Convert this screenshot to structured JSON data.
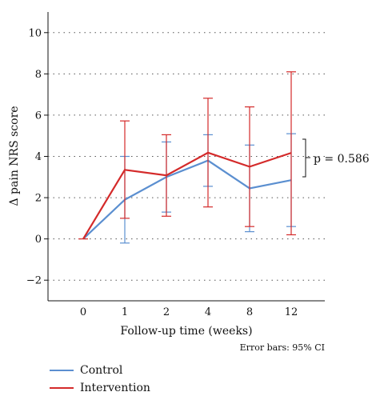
{
  "chart_data": {
    "type": "line",
    "categories": [
      "0",
      "1",
      "2",
      "4",
      "8",
      "12"
    ],
    "xlabel": "Follow-up time (weeks)",
    "ylabel": "Δ pain NRS score",
    "ylim": [
      -3,
      11
    ],
    "yticks": [
      -2,
      0,
      2,
      4,
      6,
      8,
      10
    ],
    "ytick_labels": [
      "−2",
      "0",
      "2",
      "4",
      "6",
      "8",
      "10"
    ],
    "grid": "horizontal dotted",
    "legend_placement": "bottom-left",
    "series": [
      {
        "name": "Control",
        "color": "#5b8fd0",
        "values": [
          0.0,
          1.9,
          3.0,
          3.8,
          2.45,
          2.85
        ],
        "ci_low": [
          0.0,
          -0.2,
          1.3,
          2.55,
          0.35,
          0.6
        ],
        "ci_high": [
          0.0,
          4.0,
          4.7,
          5.05,
          4.55,
          5.1
        ]
      },
      {
        "name": "Intervention",
        "color": "#d42a2a",
        "values": [
          0.0,
          3.35,
          3.08,
          4.18,
          3.5,
          4.17
        ],
        "ci_low": [
          0.0,
          1.0,
          1.1,
          1.55,
          0.6,
          0.2
        ],
        "ci_high": [
          0.0,
          5.72,
          5.05,
          6.82,
          6.4,
          8.1
        ]
      }
    ],
    "annotations": [
      "p = 0.586",
      "Error bars: 95% CI"
    ]
  }
}
